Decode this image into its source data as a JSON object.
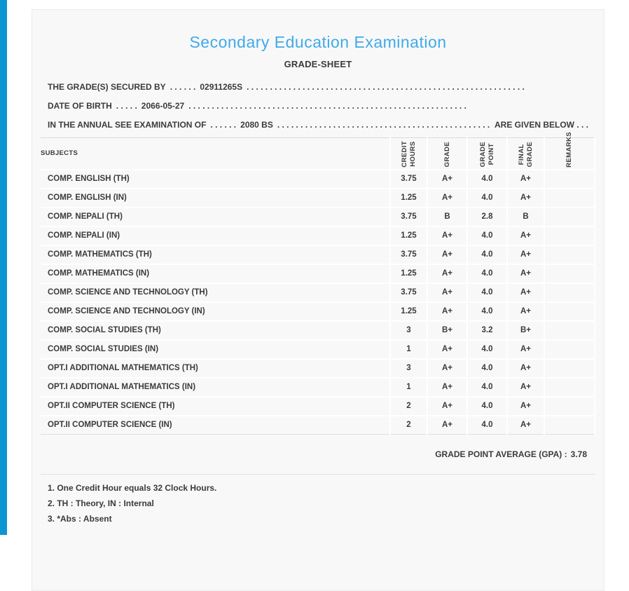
{
  "page": {
    "accent_color": "#0d95d2",
    "card_background": "#f8f8f8",
    "title_color": "#41aae8"
  },
  "header": {
    "title": "Secondary Education Examination",
    "subtitle": "GRADE-SHEET"
  },
  "info": {
    "lines": [
      {
        "segments": [
          {
            "text": "THE GRADE(S) SECURED BY"
          },
          {
            "text": ". . . . . ."
          },
          {
            "text": "02911265S"
          },
          {
            "text": ". . . . . . . . . . . . . . . . . . . . . . . . . . . . . . . . . . . . . . . . . . . . . . . . . . . . . . . . . . . .",
            "fill": true
          }
        ]
      },
      {
        "segments": [
          {
            "text": "DATE OF BIRTH"
          },
          {
            "text": ". . . . ."
          },
          {
            "text": "2066-05-27"
          },
          {
            "text": ". . . . . . . . . . . . . . . . . . . . . . . . . . . . . . . . . . . . . . . . . . . . . . . . . . . . . . . . . . . .",
            "fill": true
          }
        ]
      },
      {
        "segments": [
          {
            "text": "IN THE ANNUAL SEE EXAMINATION OF"
          },
          {
            "text": ". . . . . ."
          },
          {
            "text": "2080 BS"
          },
          {
            "text": ". . . . . . . . . . . . . . . . . . . . . . . . . . . . . . . . . . . . . . . . . . . . . . . . . . . . . . . . . . . .",
            "fill": true
          },
          {
            "text": "ARE GIVEN BELOW . . ."
          }
        ]
      }
    ]
  },
  "table": {
    "columns": [
      {
        "key": "subjects",
        "label": "SUBJECTS",
        "lines": [
          "SUBJECTS"
        ],
        "vertical": false
      },
      {
        "key": "credit-hours",
        "label": "CREDIT HOURS",
        "lines": [
          "CREDIT",
          "HOURS"
        ],
        "vertical": true
      },
      {
        "key": "grade",
        "label": "GRADE",
        "lines": [
          "GRADE"
        ],
        "vertical": true
      },
      {
        "key": "grade-point",
        "label": "GRADE POINT",
        "lines": [
          "GRADE",
          "POINT"
        ],
        "vertical": true
      },
      {
        "key": "final-grade",
        "label": "FINAL GRADE",
        "lines": [
          "FINAL",
          "GRADE"
        ],
        "vertical": true
      },
      {
        "key": "remarks",
        "label": "REMARKS",
        "lines": [
          "REMARKS"
        ],
        "vertical": true
      }
    ],
    "rows": [
      [
        "COMP. ENGLISH (TH)",
        "3.75",
        "A+",
        "4.0",
        "A+",
        ""
      ],
      [
        "COMP. ENGLISH (IN)",
        "1.25",
        "A+",
        "4.0",
        "A+",
        ""
      ],
      [
        "COMP. NEPALI (TH)",
        "3.75",
        "B",
        "2.8",
        "B",
        ""
      ],
      [
        "COMP. NEPALI (IN)",
        "1.25",
        "A+",
        "4.0",
        "A+",
        ""
      ],
      [
        "COMP. MATHEMATICS (TH)",
        "3.75",
        "A+",
        "4.0",
        "A+",
        ""
      ],
      [
        "COMP. MATHEMATICS (IN)",
        "1.25",
        "A+",
        "4.0",
        "A+",
        ""
      ],
      [
        "COMP. SCIENCE AND TECHNOLOGY (TH)",
        "3.75",
        "A+",
        "4.0",
        "A+",
        ""
      ],
      [
        "COMP. SCIENCE AND TECHNOLOGY (IN)",
        "1.25",
        "A+",
        "4.0",
        "A+",
        ""
      ],
      [
        "COMP. SOCIAL STUDIES (TH)",
        "3",
        "B+",
        "3.2",
        "B+",
        ""
      ],
      [
        "COMP. SOCIAL STUDIES (IN)",
        "1",
        "A+",
        "4.0",
        "A+",
        ""
      ],
      [
        "OPT.I ADDITIONAL MATHEMATICS (TH)",
        "3",
        "A+",
        "4.0",
        "A+",
        ""
      ],
      [
        "OPT.I ADDITIONAL MATHEMATICS (IN)",
        "1",
        "A+",
        "4.0",
        "A+",
        ""
      ],
      [
        "OPT.II COMPUTER SCIENCE (TH)",
        "2",
        "A+",
        "4.0",
        "A+",
        ""
      ],
      [
        "OPT.II COMPUTER SCIENCE (IN)",
        "2",
        "A+",
        "4.0",
        "A+",
        ""
      ]
    ],
    "gpa_label": "GRADE POINT AVERAGE (GPA) :",
    "gpa_value": "3.78"
  },
  "notes": [
    "1. One Credit Hour equals 32 Clock Hours.",
    "2. TH : Theory, IN : Internal",
    "3. *Abs : Absent"
  ]
}
